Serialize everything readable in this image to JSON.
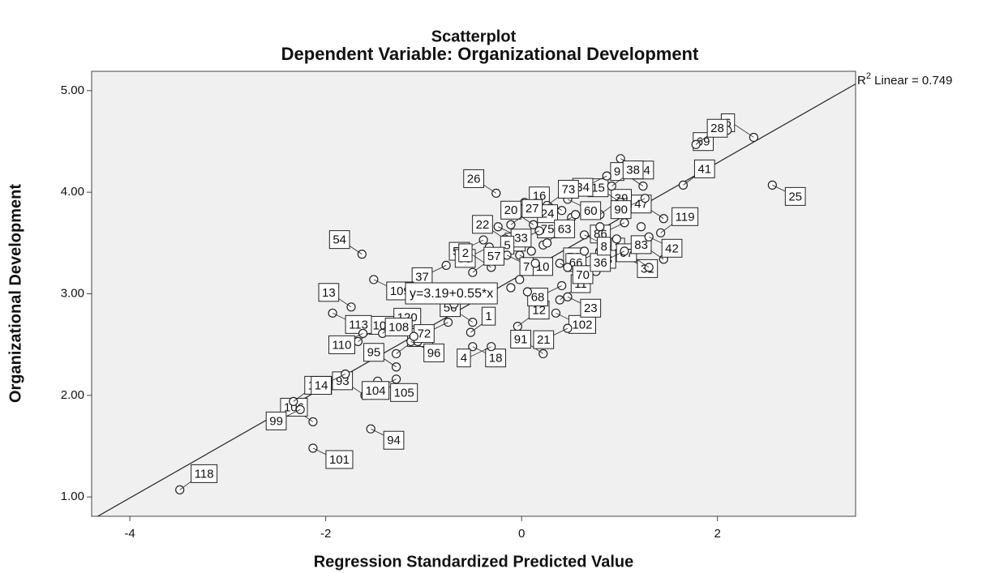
{
  "chart_data": {
    "type": "scatter",
    "title": "Scatterplot",
    "subtitle": "Dependent Variable: Organizational Development",
    "x_label": "Regression Standardized Predicted Value",
    "y_label": "Organizational Development",
    "xlim": [
      -4.39,
      3.41
    ],
    "ylim": [
      0.81,
      5.19
    ],
    "xticks": [
      -4,
      -2,
      0,
      2
    ],
    "yticks": [
      {
        "value": 1,
        "label": "1.00"
      },
      {
        "value": 2,
        "label": "2.00"
      },
      {
        "value": 3,
        "label": "3.00"
      },
      {
        "value": 4,
        "label": "4.00"
      },
      {
        "value": 5,
        "label": "5.00"
      }
    ],
    "grid": false,
    "point_color": "#ffffff",
    "plot_background": "#f0f0f0",
    "x": [
      -3.49,
      -2.13,
      -2.13,
      -2.26,
      -2.33,
      -1.54,
      -1.6,
      -1.8,
      -1.28,
      -1.47,
      -1.28,
      -1.28,
      -1.67,
      -1.93,
      -1.74,
      -1.62,
      -1.42,
      -1.13,
      -1.06,
      -0.75,
      -0.52,
      -0.5,
      -0.5,
      -0.31,
      -0.04,
      0.35,
      0.22,
      0.47,
      0.39,
      0.47,
      0.76,
      0.41,
      0.8,
      1.05,
      1.3,
      0.8,
      0.64,
      0.39,
      1.45,
      1.05,
      1.42,
      1.3,
      1.45,
      1.05,
      0.8,
      0.64,
      1.01,
      1.26,
      1.65,
      2.56,
      2.37,
      2.1,
      1.78,
      1.01,
      1.24,
      0.87,
      0.92,
      0.47,
      0.41,
      0.51,
      0.26,
      0.03,
      0.12,
      0.18,
      0.22,
      -0.02,
      -0.26,
      -0.39,
      -0.11,
      -0.24,
      -0.17,
      -0.33,
      -0.33,
      -0.15,
      -0.31,
      -0.77,
      -0.5,
      -1.51,
      -1.63,
      -1.1,
      -0.69,
      -0.4,
      -0.02,
      0.14,
      0.47,
      0.64,
      0.06,
      -0.11,
      0.8,
      0.97,
      1.22,
      0.26,
      0.1,
      0.55
    ],
    "y": [
      1.07,
      1.48,
      1.74,
      1.86,
      1.94,
      1.67,
      2.0,
      2.21,
      2.41,
      2.14,
      2.28,
      2.16,
      2.53,
      2.81,
      2.87,
      2.61,
      2.61,
      2.53,
      2.53,
      2.72,
      2.62,
      2.48,
      2.72,
      2.48,
      2.68,
      2.81,
      2.41,
      2.66,
      2.94,
      2.97,
      3.22,
      3.08,
      3.3,
      3.36,
      3.26,
      3.42,
      3.18,
      3.3,
      3.34,
      3.42,
      3.6,
      3.56,
      3.74,
      3.7,
      3.78,
      3.58,
      3.9,
      3.94,
      4.07,
      4.07,
      4.54,
      4.61,
      4.47,
      4.33,
      4.06,
      4.16,
      4.06,
      3.93,
      3.82,
      3.75,
      3.87,
      3.9,
      3.68,
      3.62,
      3.48,
      3.38,
      3.99,
      3.53,
      3.68,
      3.66,
      3.54,
      3.46,
      3.32,
      3.38,
      3.26,
      3.28,
      3.21,
      3.14,
      3.39,
      2.58,
      2.9,
      3.06,
      3.14,
      3.3,
      3.26,
      3.42,
      3.02,
      3.06,
      3.66,
      3.54,
      3.66,
      3.5,
      3.42,
      3.78
    ],
    "point_labels": [
      118,
      101,
      106,
      99,
      100,
      94,
      93,
      14,
      111,
      105,
      95,
      104,
      103,
      113,
      13,
      110,
      120,
      96,
      108,
      72,
      1,
      18,
      56,
      4,
      12,
      102,
      91,
      21,
      11,
      23,
      76,
      68,
      3,
      31,
      67,
      66,
      43,
      70,
      83,
      36,
      119,
      42,
      47,
      86,
      39,
      8,
      15,
      90,
      41,
      25,
      6,
      69,
      28,
      74,
      9,
      34,
      38,
      60,
      16,
      75,
      73,
      24,
      20,
      40,
      63,
      10,
      26,
      51,
      27,
      33,
      22,
      79,
      5,
      7,
      2,
      37,
      57,
      109,
      54,
      null,
      null,
      null,
      null,
      null,
      null,
      null,
      null,
      null,
      null,
      null,
      null,
      null,
      null,
      null
    ],
    "fit_line": {
      "intercept": 3.19,
      "slope": 0.55,
      "label": "y=3.19+0.55*x"
    },
    "r_squared_label": {
      "base": "R",
      "sup": "2",
      "rest": " Linear = 0.749"
    }
  }
}
